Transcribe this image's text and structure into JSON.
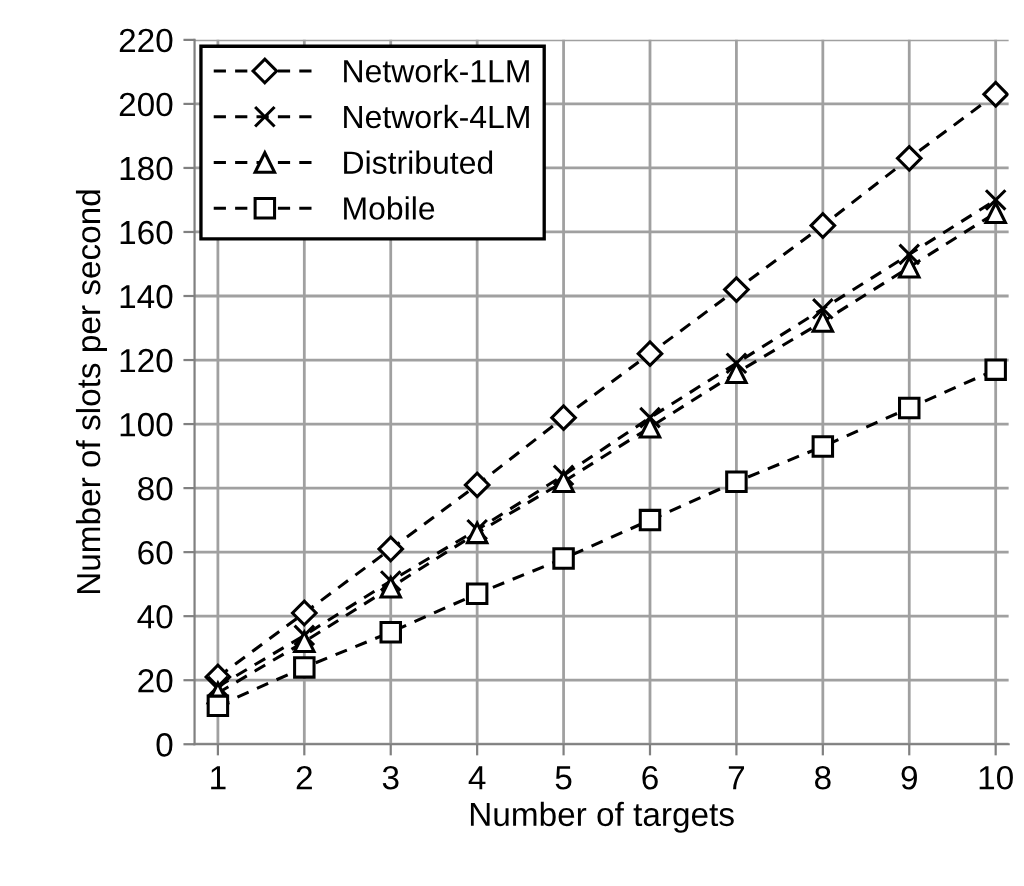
{
  "chart_data": {
    "type": "line",
    "xlabel": "Number of targets",
    "ylabel": "Number of slots per second",
    "categories": [
      "1",
      "2",
      "3",
      "4",
      "5",
      "6",
      "7",
      "8",
      "9",
      "10"
    ],
    "series": [
      {
        "name": "Network-1LM",
        "color": "#000000",
        "marker": "diamond",
        "line_style": "dashed",
        "values": [
          21,
          41,
          61,
          81,
          102,
          122,
          142,
          162,
          183,
          203
        ]
      },
      {
        "name": "Network-4LM",
        "color": "#000000",
        "marker": "cross",
        "line_style": "dashed",
        "values": [
          18,
          34,
          51,
          67,
          84,
          102,
          119,
          136,
          153,
          170
        ]
      },
      {
        "name": "Distributed",
        "color": "#000000",
        "marker": "triangle",
        "line_style": "dashed",
        "values": [
          16,
          32,
          49,
          66,
          82,
          99,
          116,
          132,
          149,
          166
        ]
      },
      {
        "name": "Mobile",
        "color": "#000000",
        "marker": "square",
        "line_style": "dashed",
        "values": [
          12,
          24,
          35,
          47,
          58,
          70,
          82,
          93,
          105,
          117
        ]
      }
    ],
    "ylim": [
      0,
      220
    ],
    "yticks": [
      0,
      20,
      40,
      60,
      80,
      100,
      120,
      140,
      160,
      180,
      200,
      220
    ],
    "grid": true,
    "legend": "top left"
  }
}
